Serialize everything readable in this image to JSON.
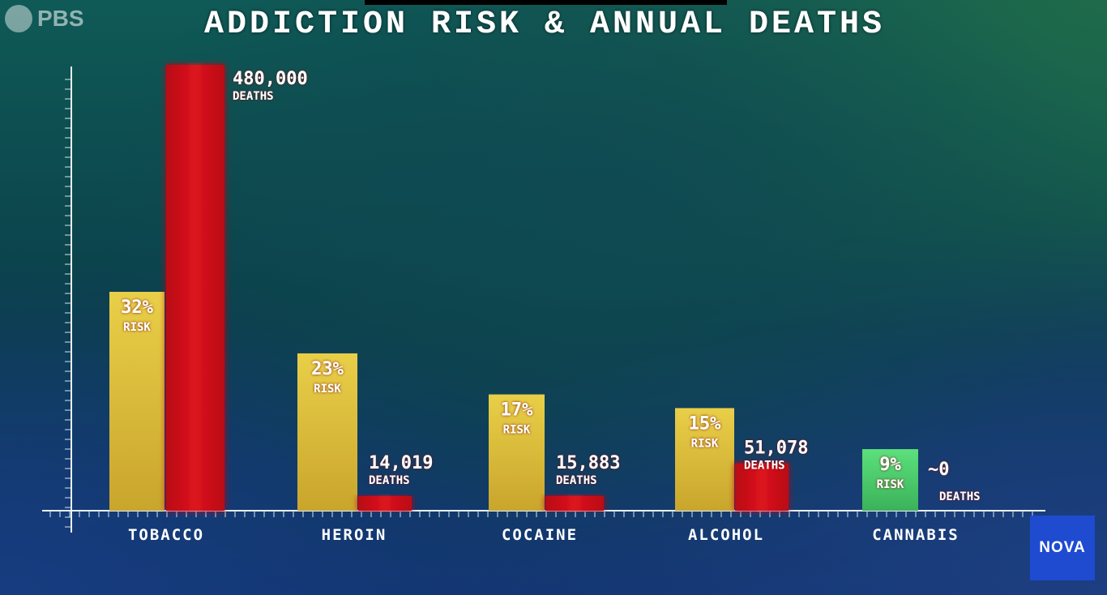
{
  "brand": {
    "pbs_logo_text": "PBS",
    "nova_logo_text": "NOVA"
  },
  "colors": {
    "risk_bar": "#e2c33c",
    "risk_bar_cannabis": "#4fd06f",
    "deaths_bar": "#d3101a"
  },
  "chart_data": {
    "type": "bar",
    "title": "ADDICTION RISK & ANNUAL DEATHS",
    "categories": [
      "TOBACCO",
      "HEROIN",
      "COCAINE",
      "ALCOHOL",
      "CANNABIS"
    ],
    "series": [
      {
        "role": "risk",
        "values": [
          32,
          23,
          17,
          15,
          9
        ],
        "labels": [
          "32%",
          "23%",
          "17%",
          "15%",
          "9%"
        ],
        "sublabel": "RISK"
      },
      {
        "role": "deaths",
        "values": [
          480000,
          14019,
          15883,
          51078,
          0
        ],
        "labels": [
          "480,000",
          "14,019",
          "15,883",
          "51,078",
          "~0"
        ],
        "sublabel": "DEATHS"
      }
    ],
    "grid": false,
    "legend": "none"
  }
}
